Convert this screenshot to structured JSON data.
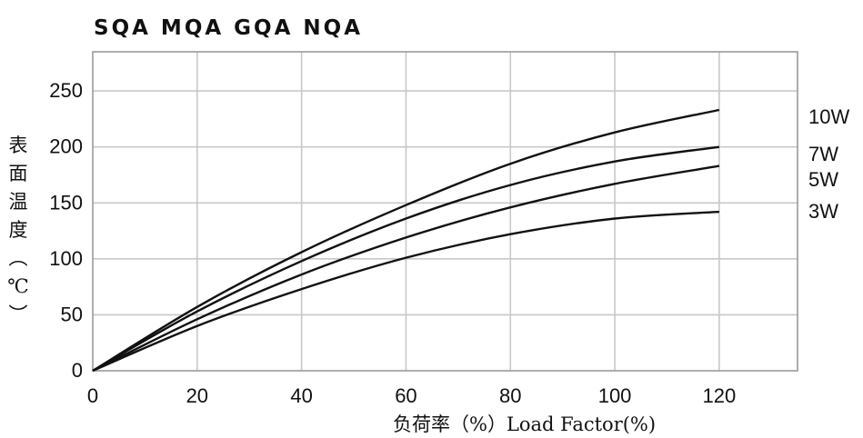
{
  "chart_data": {
    "type": "line",
    "title": "SQA MQA GQA NQA",
    "xlabel": "负荷率（%）Load Factor(%)",
    "ylabel_chars": [
      "表",
      "面",
      "温",
      "度",
      "︵",
      "℃",
      "︶"
    ],
    "xlim": [
      0,
      135
    ],
    "ylim": [
      0,
      285
    ],
    "x_ticks": [
      0,
      20,
      40,
      60,
      80,
      100,
      120
    ],
    "y_ticks": [
      0,
      50,
      100,
      150,
      200,
      250
    ],
    "grid": true,
    "series": [
      {
        "name": "10W",
        "x": [
          0,
          20,
          40,
          60,
          80,
          100,
          120
        ],
        "values": [
          0,
          57,
          106,
          148,
          185,
          213,
          233
        ]
      },
      {
        "name": "7W",
        "x": [
          0,
          20,
          40,
          60,
          80,
          100,
          120
        ],
        "values": [
          0,
          53,
          98,
          136,
          166,
          187,
          200
        ]
      },
      {
        "name": "5W",
        "x": [
          0,
          20,
          40,
          60,
          80,
          100,
          120
        ],
        "values": [
          0,
          46,
          86,
          119,
          146,
          167,
          183
        ]
      },
      {
        "name": "3W",
        "x": [
          0,
          20,
          40,
          60,
          80,
          100,
          120
        ],
        "values": [
          0,
          40,
          73,
          101,
          122,
          136,
          142
        ]
      }
    ]
  }
}
